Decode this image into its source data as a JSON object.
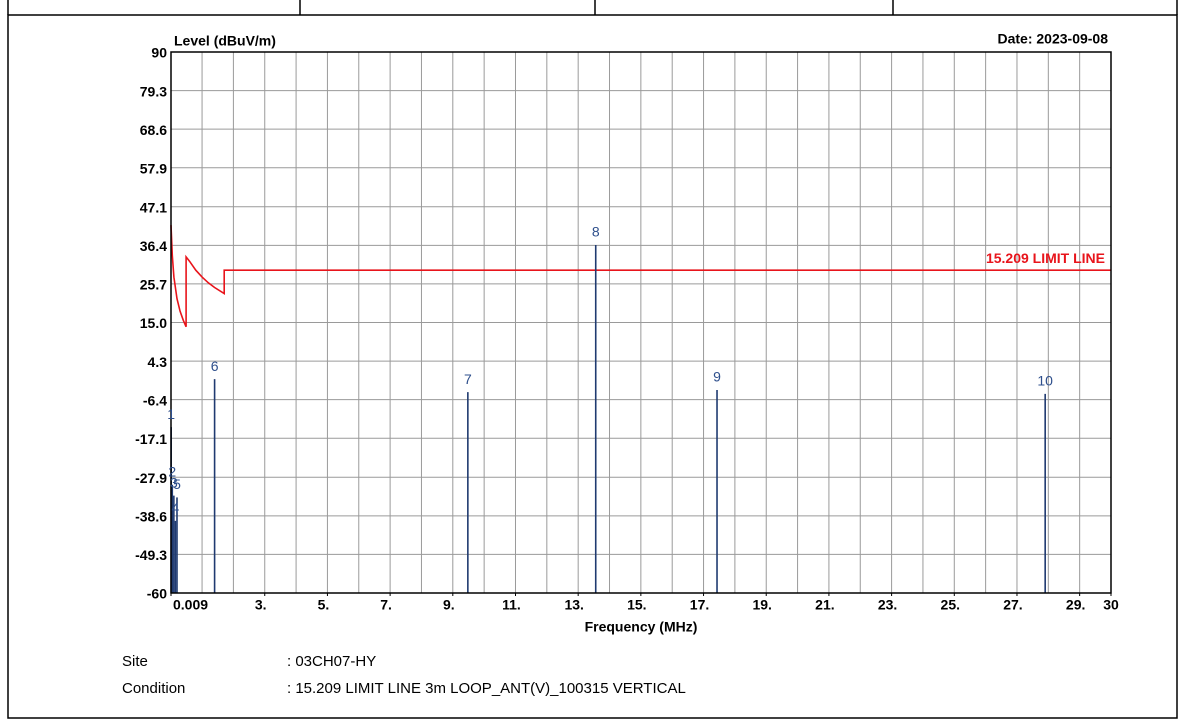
{
  "chart_data": {
    "type": "line",
    "ylabel": "Level (dBuV/m)",
    "xlabel": "Frequency (MHz)",
    "date": "Date: 2023-09-08",
    "xlim": [
      0.009,
      30
    ],
    "ylim": [
      -60,
      90
    ],
    "yticks": [
      90,
      79.3,
      68.6,
      57.9,
      47.1,
      36.4,
      25.7,
      {
        "value": 15,
        "label": "15.0"
      },
      4.3,
      -6.4,
      -17.1,
      -27.9,
      -38.6,
      -49.3,
      -60
    ],
    "xticks": [
      {
        "value": 0.009,
        "label": "0.009"
      },
      {
        "value": 3,
        "label": "3."
      },
      {
        "value": 5,
        "label": "5."
      },
      {
        "value": 7,
        "label": "7."
      },
      {
        "value": 9,
        "label": "9."
      },
      {
        "value": 11,
        "label": "11."
      },
      {
        "value": 13,
        "label": "13."
      },
      {
        "value": 15,
        "label": "15."
      },
      {
        "value": 17,
        "label": "17."
      },
      {
        "value": 19,
        "label": "19."
      },
      {
        "value": 21,
        "label": "21."
      },
      {
        "value": 23,
        "label": "23."
      },
      {
        "value": 25,
        "label": "25."
      },
      {
        "value": 27,
        "label": "27."
      },
      {
        "value": 29,
        "label": "29."
      },
      30
    ],
    "xgrid": [
      1,
      2,
      3,
      4,
      5,
      6,
      7,
      8,
      9,
      10,
      11,
      12,
      13,
      14,
      15,
      16,
      17,
      18,
      19,
      20,
      21,
      22,
      23,
      24,
      25,
      26,
      27,
      28,
      29
    ],
    "grid": true,
    "series": [
      {
        "name": "15.209 LIMIT LINE",
        "color": "#e8141b",
        "x": [
          0.009,
          0.05,
          0.1,
          0.2,
          0.3,
          0.4,
          0.49,
          0.49,
          0.6,
          0.8,
          1.0,
          1.2,
          1.4,
          1.705,
          1.705,
          30
        ],
        "values": [
          42,
          33.6,
          27.6,
          21.6,
          18.1,
          15.6,
          13.8,
          33.2,
          32.0,
          29.5,
          27.6,
          26.0,
          24.7,
          23.0,
          29.5,
          29.5
        ]
      }
    ],
    "markers": {
      "color": "#1f3a70",
      "label_color": "#2e4f8c",
      "labels": [
        "1",
        "2",
        "3",
        "4",
        "5",
        "6",
        "7",
        "8",
        "9",
        "10"
      ],
      "x": [
        0.015,
        0.05,
        0.1,
        0.15,
        0.2,
        1.4,
        9.48,
        13.56,
        17.43,
        27.9
      ],
      "values": [
        -14,
        -30,
        -33,
        -40,
        -33.5,
        -0.7,
        -4.3,
        36.5,
        -3.7,
        -4.8
      ]
    }
  },
  "info": {
    "rows": [
      [
        "Site",
        ": 03CH07-HY"
      ],
      [
        "Condition",
        ": 15.209 LIMIT LINE 3m LOOP_ANT(V)_100315 VERTICAL"
      ]
    ]
  }
}
